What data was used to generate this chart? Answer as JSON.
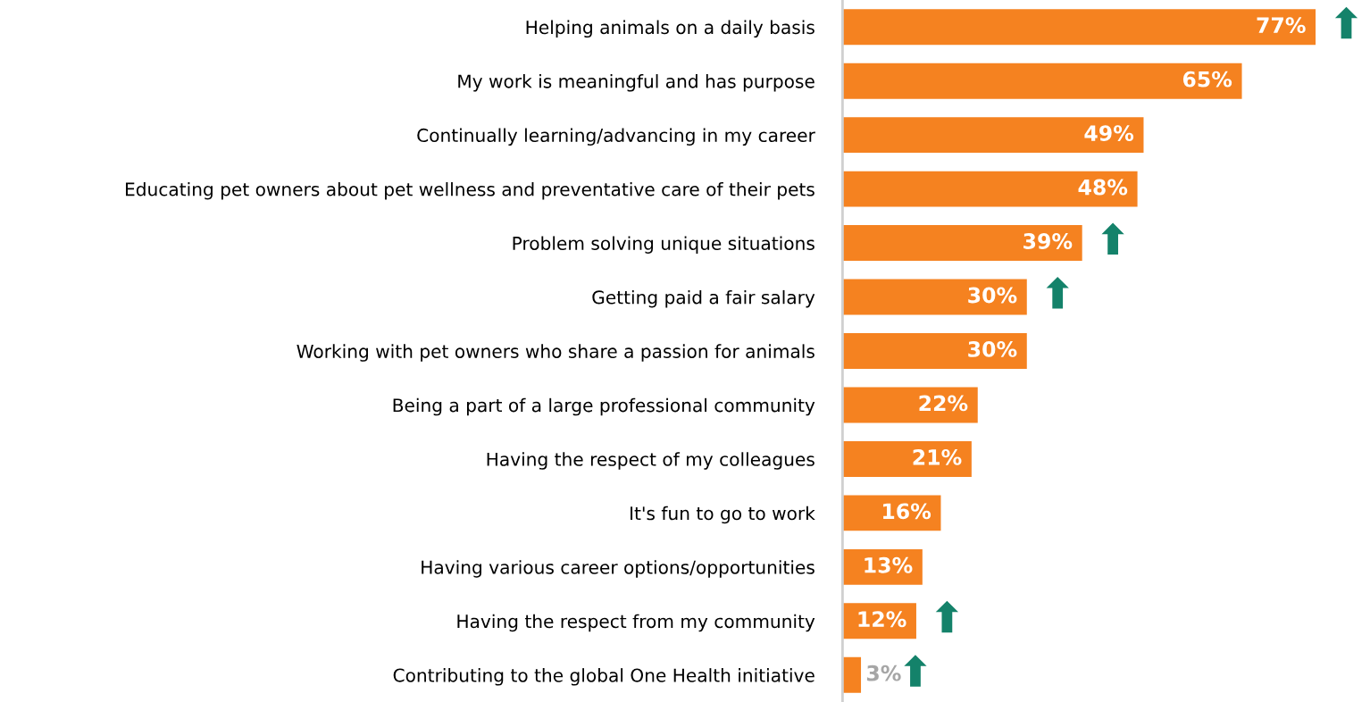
{
  "chart_data": {
    "type": "bar",
    "orientation": "horizontal",
    "categories": [
      "Helping animals on a daily basis",
      "My work is meaningful and has purpose",
      "Continually learning/advancing in my career",
      "Educating pet owners about pet wellness and preventative care of their pets",
      "Problem solving unique situations",
      "Getting paid a fair salary",
      "Working with pet owners who share a passion for animals",
      "Being a part of a large professional community",
      "Having the respect of my colleagues",
      "It's fun to go to work",
      "Having various career options/opportunities",
      "Having the respect from my community",
      "Contributing to the global One Health initiative"
    ],
    "values": [
      77,
      65,
      49,
      48,
      39,
      30,
      30,
      22,
      21,
      16,
      13,
      12,
      3
    ],
    "value_labels": [
      "77%",
      "65%",
      "49%",
      "48%",
      "39%",
      "30%",
      "30%",
      "22%",
      "21%",
      "16%",
      "13%",
      "12%",
      "3%"
    ],
    "color": "#f58220",
    "tick_labels": "y",
    "grid": false,
    "annotations": [
      {
        "text": "⬆",
        "x": 77,
        "y": "Helping animals on a daily basis"
      },
      {
        "text": "⬆",
        "x": 39,
        "y": "Problem solving unique situations"
      },
      {
        "text": "⬆",
        "x": 30,
        "y": "Getting paid a fair salary"
      },
      {
        "text": "⬆",
        "x": 12,
        "y": "Having the respect from my community"
      },
      {
        "text": "⬆",
        "x": 3,
        "y": "Contributing to the global One Health initiative"
      }
    ]
  }
}
